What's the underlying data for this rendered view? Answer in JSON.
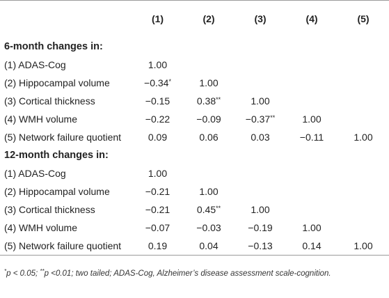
{
  "table": {
    "columns": [
      "",
      "(1)",
      "(2)",
      "(3)",
      "(4)",
      "(5)"
    ],
    "sections": [
      {
        "title": "6-month changes in:",
        "rows": [
          {
            "label": "(1) ADAS-Cog",
            "values": [
              "1.00",
              "",
              "",
              "",
              ""
            ],
            "sig": [
              "",
              "",
              "",
              "",
              ""
            ]
          },
          {
            "label": "(2) Hippocampal volume",
            "values": [
              "−0.34",
              "1.00",
              "",
              "",
              ""
            ],
            "sig": [
              "*",
              "",
              "",
              "",
              ""
            ]
          },
          {
            "label": "(3) Cortical thickness",
            "values": [
              "−0.15",
              "0.38",
              "1.00",
              "",
              ""
            ],
            "sig": [
              "",
              "**",
              "",
              "",
              ""
            ]
          },
          {
            "label": "(4) WMH volume",
            "values": [
              "−0.22",
              "−0.09",
              "−0.37",
              "1.00",
              ""
            ],
            "sig": [
              "",
              "",
              "**",
              "",
              ""
            ]
          },
          {
            "label": "(5) Network failure quotient",
            "values": [
              "0.09",
              "0.06",
              "0.03",
              "−0.11",
              "1.00"
            ],
            "sig": [
              "",
              "",
              "",
              "",
              ""
            ]
          }
        ]
      },
      {
        "title": "12-month changes in:",
        "rows": [
          {
            "label": "(1) ADAS-Cog",
            "values": [
              "1.00",
              "",
              "",
              "",
              ""
            ],
            "sig": [
              "",
              "",
              "",
              "",
              ""
            ]
          },
          {
            "label": "(2) Hippocampal volume",
            "values": [
              "−0.21",
              "1.00",
              "",
              "",
              ""
            ],
            "sig": [
              "",
              "",
              "",
              "",
              ""
            ]
          },
          {
            "label": "(3) Cortical thickness",
            "values": [
              "−0.21",
              "0.45",
              "1.00",
              "",
              ""
            ],
            "sig": [
              "",
              "**",
              "",
              "",
              ""
            ]
          },
          {
            "label": "(4) WMH volume",
            "values": [
              "−0.07",
              "−0.03",
              "−0.19",
              "1.00",
              ""
            ],
            "sig": [
              "",
              "",
              "",
              "",
              ""
            ]
          },
          {
            "label": "(5) Network failure quotient",
            "values": [
              "0.19",
              "0.04",
              "−0.13",
              "0.14",
              "1.00"
            ],
            "sig": [
              "",
              "",
              "",
              "",
              ""
            ]
          }
        ]
      }
    ]
  },
  "footnote": {
    "star1": "*",
    "part1": "p < 0.05; ",
    "star2": "**",
    "part2": "p <0.01; two tailed; ADAS-Cog, Alzheimer’s disease assessment scale-cognition."
  }
}
